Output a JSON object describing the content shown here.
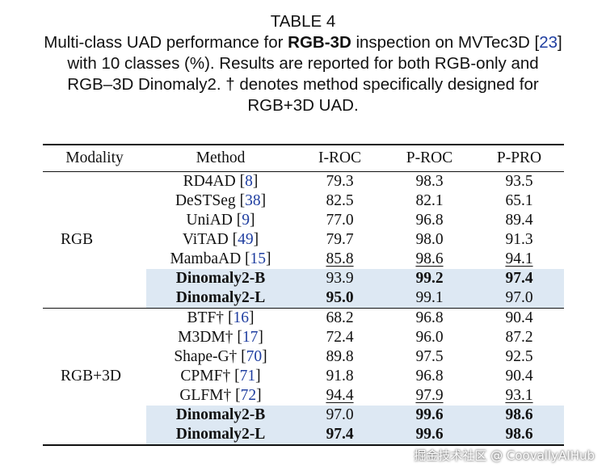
{
  "caption": {
    "number": "TABLE 4",
    "line1_pre": "Multi-class UAD performance for ",
    "line1_bold": "RGB-3D",
    "line1_post": " inspection on MVTec3D [",
    "line1_ref": "23",
    "line1_end": "]",
    "line2": "with 10 classes (%). Results are reported for both RGB-only and",
    "line3": "RGB–3D Dinomaly2. † denotes method specifically designed for",
    "line4": "RGB+3D UAD."
  },
  "table": {
    "headers": [
      "Modality",
      "Method",
      "I-ROC",
      "P-ROC",
      "P-PRO"
    ],
    "groups": [
      {
        "modality": "RGB",
        "rows": [
          {
            "method": "RD4AD",
            "ref": "8",
            "i_roc": "79.3",
            "p_roc": "98.3",
            "p_pro": "93.5"
          },
          {
            "method": "DeSTSeg",
            "ref": "38",
            "i_roc": "82.5",
            "p_roc": "82.1",
            "p_pro": "65.1"
          },
          {
            "method": "UniAD",
            "ref": "9",
            "i_roc": "77.0",
            "p_roc": "96.8",
            "p_pro": "89.4"
          },
          {
            "method": "ViTAD",
            "ref": "49",
            "i_roc": "79.7",
            "p_roc": "98.0",
            "p_pro": "91.3"
          },
          {
            "method": "MambaAD",
            "ref": "15",
            "i_roc": "85.8",
            "p_roc": "98.6",
            "p_pro": "94.1"
          },
          {
            "method": "Dinomaly2-B",
            "ref": "",
            "i_roc": "93.9",
            "p_roc": "99.2",
            "p_pro": "97.4"
          },
          {
            "method": "Dinomaly2-L",
            "ref": "",
            "i_roc": "95.0",
            "p_roc": "99.1",
            "p_pro": "97.0"
          }
        ]
      },
      {
        "modality": "RGB+3D",
        "rows": [
          {
            "method": "BTF†",
            "ref": "16",
            "i_roc": "68.2",
            "p_roc": "96.8",
            "p_pro": "90.4"
          },
          {
            "method": "M3DM†",
            "ref": "17",
            "i_roc": "72.4",
            "p_roc": "96.0",
            "p_pro": "87.2"
          },
          {
            "method": "Shape-G†",
            "ref": "70",
            "i_roc": "89.8",
            "p_roc": "97.5",
            "p_pro": "92.5"
          },
          {
            "method": "CPMF†",
            "ref": "71",
            "i_roc": "91.8",
            "p_roc": "96.8",
            "p_pro": "90.4"
          },
          {
            "method": "GLFM†",
            "ref": "72",
            "i_roc": "94.4",
            "p_roc": "97.9",
            "p_pro": "93.1"
          },
          {
            "method": "Dinomaly2-B",
            "ref": "",
            "i_roc": "97.0",
            "p_roc": "99.6",
            "p_pro": "98.6"
          },
          {
            "method": "Dinomaly2-L",
            "ref": "",
            "i_roc": "97.4",
            "p_roc": "99.6",
            "p_pro": "98.6"
          }
        ]
      }
    ]
  },
  "watermark": "掘金技术社区 @ CoovallyAIHub"
}
